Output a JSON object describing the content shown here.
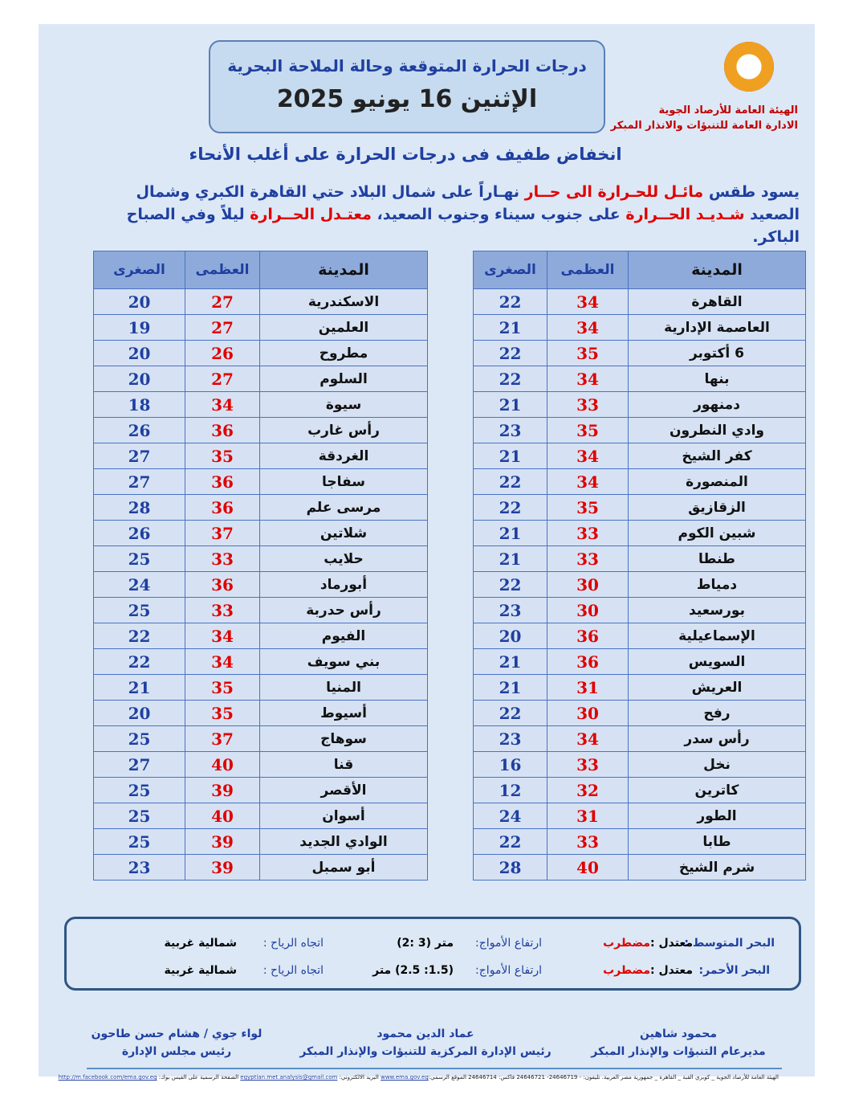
{
  "header": {
    "title": "درجات الحرارة المتوقعة وحالة الملاحة البحرية",
    "date": "الإثنين 16 يونيو 2025",
    "org_line1": "الهيئة العامة للأرصاد الجوية",
    "org_line2": "الادارة العامة للتنبؤات والانذار المبكر"
  },
  "headline": "انخفاض طفيف فى درجات الحرارة على أغلب  الأنحاء",
  "paragraph": {
    "p1": "يسود طقس ",
    "p2": "مائـل للحـرارة الى حــار",
    "p3": " نهـاراً على شمال البلاد حتي القاهرة الكبري وشمال الصعيد ",
    "p4": "شـديـد الحــرارة",
    "p5": " على جنوب سيناء وجنوب الصعيد، ",
    "p6": "معتـدل الحــرارة",
    "p7": "  ليلاً وفي الصباح الباكر."
  },
  "table_headers": {
    "city": "المدينة",
    "max": "العظمى",
    "min": "الصغرى"
  },
  "right_table": [
    [
      "القاهرة",
      "34",
      "22"
    ],
    [
      "العاصمة الإدارية",
      "34",
      "21"
    ],
    [
      "6 أكتوبر",
      "35",
      "22"
    ],
    [
      "بنها",
      "34",
      "22"
    ],
    [
      "دمنهور",
      "33",
      "21"
    ],
    [
      "وادي النطرون",
      "35",
      "23"
    ],
    [
      "كفر الشيخ",
      "34",
      "21"
    ],
    [
      "المنصورة",
      "34",
      "22"
    ],
    [
      "الزقازيق",
      "35",
      "22"
    ],
    [
      "شبين الكوم",
      "33",
      "21"
    ],
    [
      "طنطا",
      "33",
      "21"
    ],
    [
      "دمياط",
      "30",
      "22"
    ],
    [
      "بورسعيد",
      "30",
      "23"
    ],
    [
      "الإسماعيلية",
      "36",
      "20"
    ],
    [
      "السويس",
      "36",
      "21"
    ],
    [
      "العريش",
      "31",
      "21"
    ],
    [
      "رفح",
      "30",
      "22"
    ],
    [
      "رأس سدر",
      "34",
      "23"
    ],
    [
      "نخل",
      "33",
      "16"
    ],
    [
      "كاترين",
      "32",
      "12"
    ],
    [
      "الطور",
      "31",
      "24"
    ],
    [
      "طابا",
      "33",
      "22"
    ],
    [
      "شرم الشيخ",
      "40",
      "28"
    ]
  ],
  "left_table": [
    [
      "الاسكندرية",
      "27",
      "20"
    ],
    [
      "العلمين",
      "27",
      "19"
    ],
    [
      "مطروح",
      "26",
      "20"
    ],
    [
      "السلوم",
      "27",
      "20"
    ],
    [
      "سيوة",
      "34",
      "18"
    ],
    [
      "رأس غارب",
      "36",
      "26"
    ],
    [
      "الغردقة",
      "35",
      "27"
    ],
    [
      "سفاجا",
      "36",
      "27"
    ],
    [
      "مرسى علم",
      "36",
      "28"
    ],
    [
      "شلاتين",
      "37",
      "26"
    ],
    [
      "حلايب",
      "33",
      "25"
    ],
    [
      "أبورماد",
      "36",
      "24"
    ],
    [
      "رأس حدربة",
      "33",
      "25"
    ],
    [
      "الفيوم",
      "34",
      "22"
    ],
    [
      "بني سويف",
      "34",
      "22"
    ],
    [
      "المنيا",
      "35",
      "21"
    ],
    [
      "أسيوط",
      "35",
      "20"
    ],
    [
      "سوهاج",
      "37",
      "25"
    ],
    [
      "قنا",
      "40",
      "27"
    ],
    [
      "الأقصر",
      "39",
      "25"
    ],
    [
      "أسوان",
      "40",
      "25"
    ],
    [
      "الوادي الجديد",
      "39",
      "25"
    ],
    [
      "أبو سمبل",
      "39",
      "23"
    ]
  ],
  "sea": [
    {
      "name": "البحر المتوسط :",
      "state": "معتدل :",
      "state2": "مضطرب",
      "waves_label": "ارتفاع الأمواج:",
      "waves": "(2: 3) متر",
      "wind_label": "اتجاه الرياح  :",
      "wind": "شمالية غربية"
    },
    {
      "name": "البحر الأحمر:",
      "state": "معتدل :",
      "state2": "مضطرب",
      "waves_label": "ارتفاع الأمواج:",
      "waves": "(1.5: 2.5) متر",
      "wind_label": "اتجاه الرياح  :",
      "wind": "شمالية غربية"
    }
  ],
  "signatures": [
    {
      "name": "محمود شاهين",
      "title": "مديرعام التنبؤات والإنذار المبكر"
    },
    {
      "name": "عماد الدين محمود",
      "title": "رئيس الإدارة المركزية للتنبؤات والإنذار المبكر"
    },
    {
      "name": "لواء جوي / هشام حسن طاحون",
      "title": "رئيس مجلس الإدارة"
    }
  ],
  "footer": {
    "address": "الهيئة العامة للأرصاد الجوية _ كوبري القبة _ القاهرة _ جمهورية مصر العربية. تليفون: - 24646719- 24646721 فاكس: 24646714 الموقع الرسمي:",
    "site": "www.ema.gov.eg",
    "email_label": " البريد الالكتروني: ",
    "email": "egyptian.met.analysis@gmail.com",
    "fb_label": "  الصفحة الرسمية على الفيس بوك: ",
    "fb": "http://m.facebook.com/ema.gov.eg"
  },
  "colors": {
    "page_bg": "#dce8f5",
    "header_cell": "#8eaadb",
    "row_cell": "#d6e2f3",
    "max_temp": "#e00000",
    "min_temp": "#1f3fa0",
    "border": "#4a72c4"
  }
}
